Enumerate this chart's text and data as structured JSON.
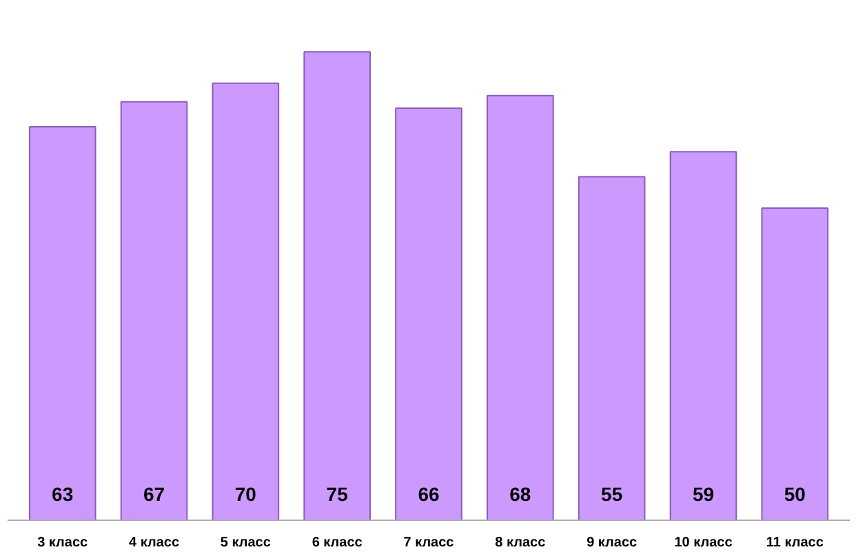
{
  "chart_data": {
    "type": "bar",
    "categories": [
      "3 класс",
      "4 класс",
      "5 класс",
      "6 класс",
      "7 класс",
      "8 класс",
      "9 класс",
      "10 класс",
      "11 класс"
    ],
    "values": [
      63,
      67,
      70,
      75,
      66,
      68,
      55,
      59,
      50
    ],
    "color": "#cc99ff",
    "data_labels": true
  }
}
